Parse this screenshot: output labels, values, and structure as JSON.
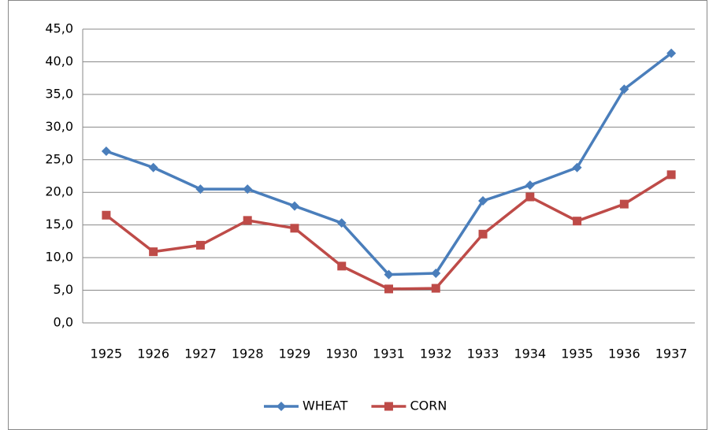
{
  "chart_data": {
    "type": "line",
    "categories": [
      "1925",
      "1926",
      "1927",
      "1928",
      "1929",
      "1930",
      "1931",
      "1932",
      "1933",
      "1934",
      "1935",
      "1936",
      "1937"
    ],
    "series": [
      {
        "name": "WHEAT",
        "color": "#4a7ebb",
        "marker": "diamond",
        "values": [
          26.3,
          23.8,
          20.5,
          20.5,
          17.9,
          15.3,
          7.4,
          7.6,
          18.7,
          21.1,
          23.8,
          35.8,
          41.3
        ]
      },
      {
        "name": "CORN",
        "color": "#be4b48",
        "marker": "square",
        "values": [
          16.5,
          10.9,
          11.9,
          15.7,
          14.5,
          8.7,
          5.2,
          5.3,
          13.6,
          19.3,
          15.6,
          18.2,
          22.7
        ]
      }
    ],
    "ylim": [
      0,
      45
    ],
    "yticks": [
      {
        "value": 0,
        "label": "0,0"
      },
      {
        "value": 5,
        "label": "5,0"
      },
      {
        "value": 10,
        "label": "10,0"
      },
      {
        "value": 15,
        "label": "15,0"
      },
      {
        "value": 20,
        "label": "20,0"
      },
      {
        "value": 25,
        "label": "25,0"
      },
      {
        "value": 30,
        "label": "30,0"
      },
      {
        "value": 35,
        "label": "35,0"
      },
      {
        "value": 40,
        "label": "40,0"
      },
      {
        "value": 45,
        "label": "45,0"
      }
    ],
    "grid": true,
    "legend": "bottom"
  }
}
